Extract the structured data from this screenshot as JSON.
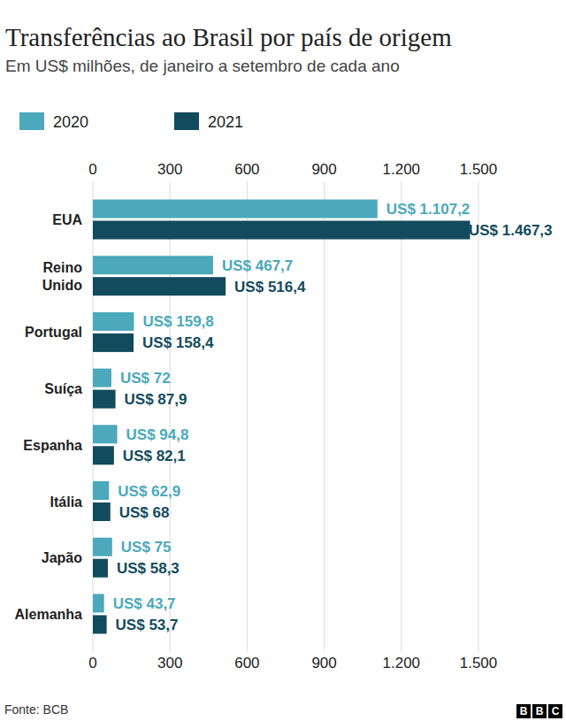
{
  "chart_data": {
    "type": "bar",
    "orientation": "horizontal",
    "title": "Transferências ao Brasil por país de origem",
    "subtitle": "Em US$ milhões, de janeiro a setembro de cada ano",
    "source": "Fonte: BCB",
    "credit": "BBC",
    "categories": [
      "EUA",
      "Reino Unido",
      "Portugal",
      "Suíça",
      "Espanha",
      "Itália",
      "Japão",
      "Alemanha"
    ],
    "series": [
      {
        "name": "2020",
        "color": "#4ba9bb",
        "values": [
          1107.2,
          467.7,
          159.8,
          72,
          94.8,
          62.9,
          75,
          43.7
        ],
        "value_labels": [
          "US$ 1.107,2",
          "US$ 467,7",
          "US$ 159,8",
          "US$ 72",
          "US$ 94,8",
          "US$ 62,9",
          "US$ 75",
          "US$ 43,7"
        ]
      },
      {
        "name": "2021",
        "color": "#124b5d",
        "values": [
          1467.3,
          516.4,
          158.4,
          87.9,
          82.1,
          68,
          58.3,
          53.7
        ],
        "value_labels": [
          "US$ 1.467,3",
          "US$ 516,4",
          "US$ 158,4",
          "US$ 87,9",
          "US$ 82,1",
          "US$ 68",
          "US$ 58,3",
          "US$ 53,7"
        ]
      }
    ],
    "xlim": [
      0,
      1500
    ],
    "xticks": [
      0,
      300,
      600,
      900,
      {
        "value": 1200,
        "label": "1.200"
      },
      {
        "value": 1500,
        "label": "1.500"
      }
    ],
    "grid": true,
    "legend": "top-left",
    "data_labels": true
  }
}
